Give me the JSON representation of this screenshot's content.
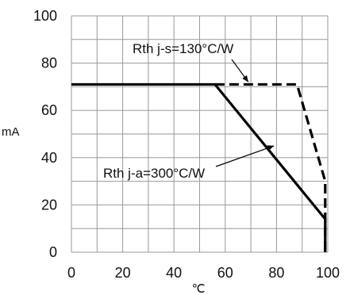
{
  "chart_data": {
    "type": "line",
    "title": "",
    "xlabel": "℃",
    "ylabel": "mA",
    "xlim": [
      0,
      100
    ],
    "ylim": [
      0,
      100
    ],
    "grid": true,
    "x_ticks": [
      0,
      20,
      40,
      60,
      80,
      100
    ],
    "x_tick_labels": [
      "0",
      "20",
      "40",
      "60",
      "80",
      "100"
    ],
    "y_ticks": [
      0,
      20,
      40,
      60,
      80,
      100
    ],
    "y_tick_labels": [
      "0",
      "20",
      "40",
      "60",
      "80",
      "100"
    ],
    "series": [
      {
        "style": "solid",
        "color": "#000000",
        "x": [
          0,
          56,
          99,
          99
        ],
        "y": [
          71,
          71,
          14,
          0
        ]
      },
      {
        "style": "dashed",
        "color": "#000000",
        "x": [
          56,
          88,
          99,
          99
        ],
        "y": [
          71,
          71,
          30,
          0
        ]
      }
    ],
    "annotations": [
      {
        "text": "Rth j-s=130°C/W",
        "anchor": {
          "x": 72,
          "y": 85
        },
        "arrow_to": {
          "x": 69,
          "y": 72
        }
      },
      {
        "text": "Rth j-a=300°C/W",
        "anchor": {
          "x": 62,
          "y": 32
        },
        "arrow_to": {
          "x": 79,
          "y": 45
        }
      }
    ]
  }
}
